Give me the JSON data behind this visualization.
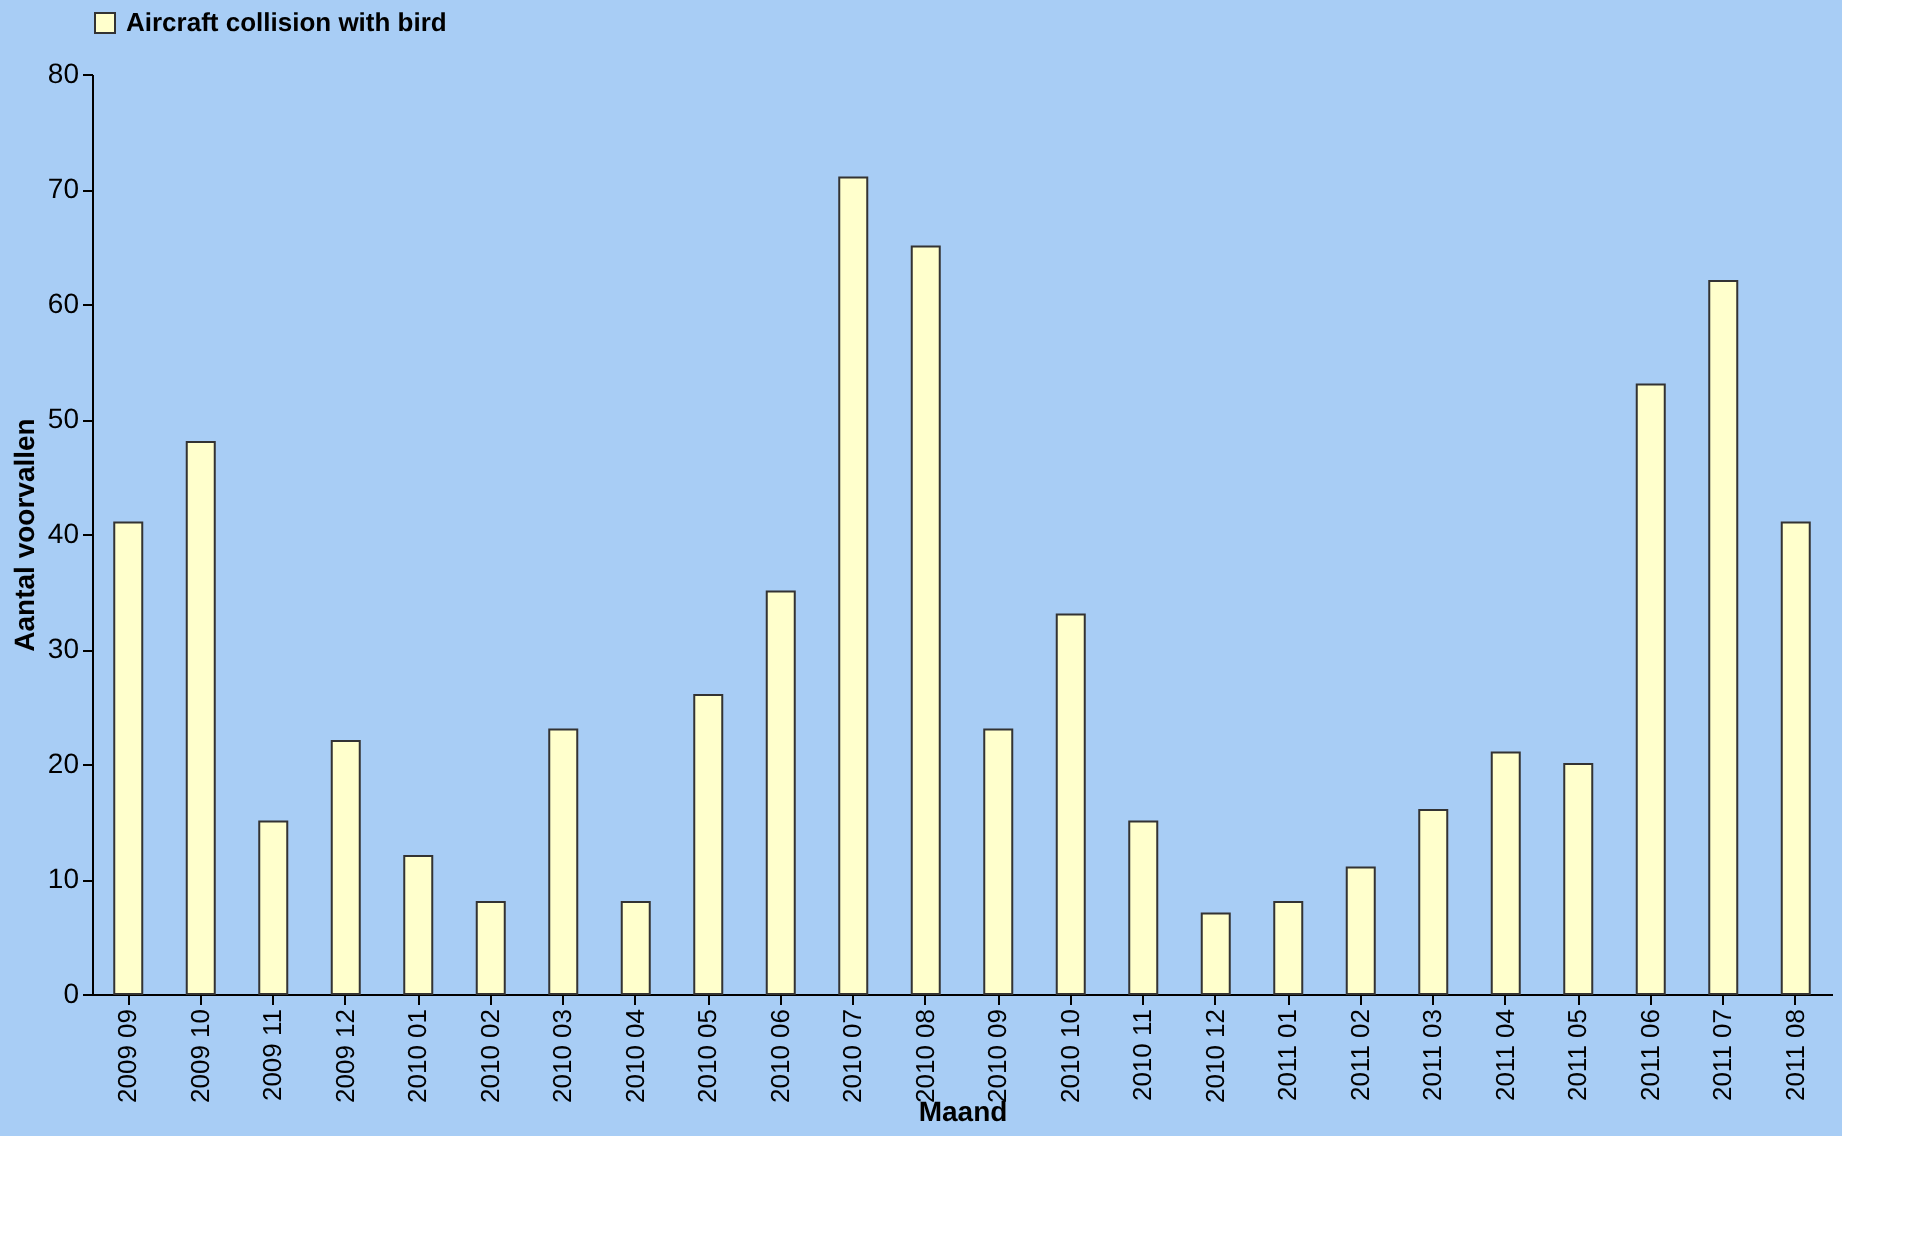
{
  "chart_data": {
    "type": "bar",
    "categories": [
      "2009 09",
      "2009 10",
      "2009 11",
      "2009 12",
      "2010 01",
      "2010 02",
      "2010 03",
      "2010 04",
      "2010 05",
      "2010 06",
      "2010 07",
      "2010 08",
      "2010 09",
      "2010 10",
      "2010 11",
      "2010 12",
      "2011 01",
      "2011 02",
      "2011 03",
      "2011 04",
      "2011 05",
      "2011 06",
      "2011 07",
      "2011 08"
    ],
    "series": [
      {
        "name": "Aircraft collision with bird",
        "color": "#ffffcc",
        "values": [
          41,
          48,
          15,
          22,
          12,
          8,
          23,
          8,
          26,
          35,
          71,
          65,
          23,
          33,
          15,
          7,
          8,
          11,
          16,
          21,
          20,
          53,
          62,
          41
        ]
      }
    ],
    "xlabel": "Maand",
    "ylabel": "Aantal voorvallen",
    "ylim": [
      0,
      80
    ],
    "yticks": [
      0,
      10,
      20,
      30,
      40,
      50,
      60,
      70,
      80
    ],
    "grid": false,
    "legend": "top"
  }
}
